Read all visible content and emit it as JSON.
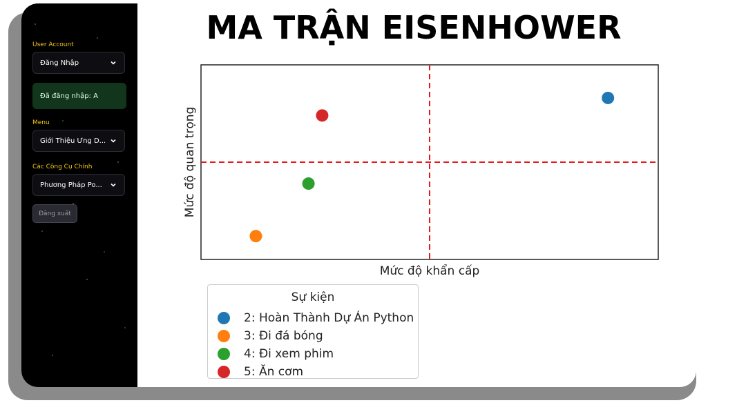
{
  "sidebar": {
    "user_account_label": "User Account",
    "login_select_value": "Đăng Nhập",
    "login_status": "Đã đăng nhập: A",
    "menu_label": "Menu",
    "menu_select_value": "Giới Thiệu Ứng D...",
    "tools_label": "Các Công Cụ Chính",
    "tools_select_value": "Phương Pháp Po...",
    "logout_label": "Đăng xuất"
  },
  "main": {
    "title": "MA TRẬN EISENHOWER"
  },
  "chart_data": {
    "type": "scatter",
    "title": "MA TRẬN EISENHOWER",
    "xlabel": "Mức độ khẩn cấp",
    "ylabel": "Mức độ quan trọng",
    "xlim": [
      0,
      10
    ],
    "ylim": [
      0,
      10
    ],
    "xticks_shown": false,
    "yticks_shown": false,
    "divider_x": 5,
    "divider_y": 5,
    "divider_color": "#e41a1c",
    "legend_title": "Sự kiện",
    "legend_position": "lower-left (below plot)",
    "points": [
      {
        "label": "2: Hoàn Thành Dự Án Python",
        "x": 8.9,
        "y": 8.3,
        "color": "#1f77b4"
      },
      {
        "label": "3: Đi đá bóng",
        "x": 1.2,
        "y": 1.2,
        "color": "#ff7f0e"
      },
      {
        "label": "4: Đi xem phim",
        "x": 2.35,
        "y": 3.9,
        "color": "#2ca02c"
      },
      {
        "label": "5: Ăn cơm",
        "x": 2.65,
        "y": 7.4,
        "color": "#d62728"
      }
    ]
  }
}
